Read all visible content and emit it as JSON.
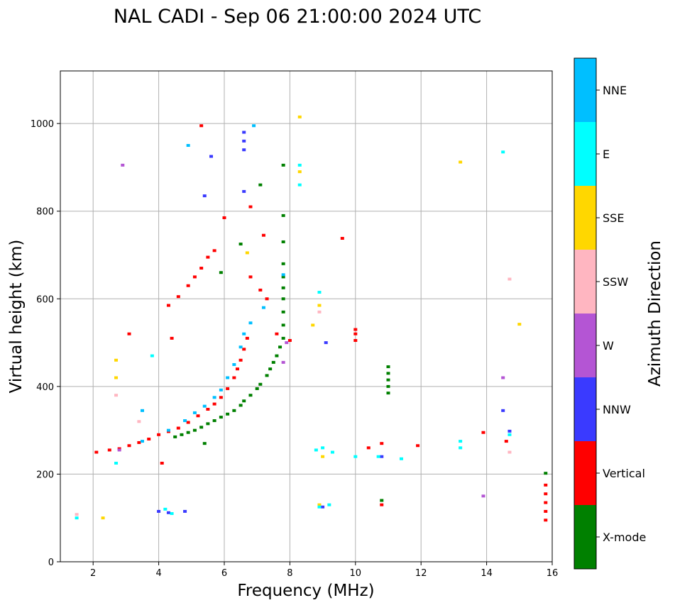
{
  "chart_data": {
    "type": "scatter",
    "title": "NAL CADI - Sep 06 21:00:00 2024 UTC",
    "xlabel": "Frequency (MHz)",
    "ylabel": "Virtual height (km)",
    "xlim": [
      1,
      16
    ],
    "ylim": [
      0,
      1120
    ],
    "xticks": [
      2,
      4,
      6,
      8,
      10,
      12,
      14,
      16
    ],
    "yticks": [
      0,
      200,
      400,
      600,
      800,
      1000
    ],
    "grid": true,
    "colorbar": {
      "label": "Azimuth Direction",
      "categories": [
        {
          "name": "X-mode",
          "color": "#008000"
        },
        {
          "name": "Vertical",
          "color": "#ff0000"
        },
        {
          "name": "NNW",
          "color": "#3a3aff"
        },
        {
          "name": "W",
          "color": "#b455d4"
        },
        {
          "name": "SSW",
          "color": "#ffb6c1"
        },
        {
          "name": "SSE",
          "color": "#ffd700"
        },
        {
          "name": "E",
          "color": "#00ffff"
        },
        {
          "name": "NNE",
          "color": "#00bfff"
        }
      ]
    },
    "series": [
      {
        "name": "X-mode",
        "color": "#008000",
        "points": [
          [
            4.5,
            285
          ],
          [
            4.7,
            290
          ],
          [
            4.9,
            295
          ],
          [
            5.1,
            300
          ],
          [
            5.3,
            307
          ],
          [
            5.5,
            315
          ],
          [
            5.7,
            322
          ],
          [
            5.9,
            330
          ],
          [
            6.1,
            337
          ],
          [
            6.3,
            345
          ],
          [
            6.5,
            357
          ],
          [
            6.6,
            367
          ],
          [
            6.8,
            380
          ],
          [
            7.0,
            395
          ],
          [
            7.1,
            405
          ],
          [
            7.3,
            425
          ],
          [
            7.4,
            440
          ],
          [
            7.5,
            455
          ],
          [
            7.6,
            470
          ],
          [
            7.7,
            490
          ],
          [
            7.8,
            510
          ],
          [
            7.8,
            540
          ],
          [
            7.8,
            570
          ],
          [
            7.8,
            600
          ],
          [
            7.8,
            625
          ],
          [
            7.8,
            650
          ],
          [
            7.8,
            680
          ],
          [
            7.8,
            730
          ],
          [
            7.8,
            790
          ],
          [
            6.5,
            725
          ],
          [
            7.1,
            860
          ],
          [
            7.8,
            905
          ],
          [
            11.0,
            385
          ],
          [
            11.0,
            400
          ],
          [
            11.0,
            415
          ],
          [
            11.0,
            430
          ],
          [
            11.0,
            445
          ],
          [
            5.4,
            270
          ],
          [
            5.9,
            660
          ],
          [
            10.8,
            140
          ],
          [
            15.8,
            202
          ]
        ]
      },
      {
        "name": "Vertical",
        "color": "#ff0000",
        "points": [
          [
            2.1,
            250
          ],
          [
            2.5,
            255
          ],
          [
            2.8,
            258
          ],
          [
            3.1,
            265
          ],
          [
            3.4,
            272
          ],
          [
            3.7,
            280
          ],
          [
            4.0,
            290
          ],
          [
            4.3,
            297
          ],
          [
            4.6,
            305
          ],
          [
            4.9,
            318
          ],
          [
            5.2,
            333
          ],
          [
            5.5,
            348
          ],
          [
            5.7,
            360
          ],
          [
            5.9,
            375
          ],
          [
            6.1,
            395
          ],
          [
            6.3,
            420
          ],
          [
            6.4,
            440
          ],
          [
            6.5,
            460
          ],
          [
            6.6,
            485
          ],
          [
            6.7,
            510
          ],
          [
            4.3,
            585
          ],
          [
            4.6,
            605
          ],
          [
            4.9,
            630
          ],
          [
            5.1,
            650
          ],
          [
            5.3,
            670
          ],
          [
            5.5,
            695
          ],
          [
            5.7,
            710
          ],
          [
            6.8,
            650
          ],
          [
            7.1,
            620
          ],
          [
            7.3,
            600
          ],
          [
            7.2,
            745
          ],
          [
            7.6,
            520
          ],
          [
            8.0,
            505
          ],
          [
            10.0,
            505
          ],
          [
            10.0,
            520
          ],
          [
            10.0,
            530
          ],
          [
            11.9,
            265
          ],
          [
            13.9,
            295
          ],
          [
            14.6,
            275
          ],
          [
            15.8,
            95
          ],
          [
            15.8,
            115
          ],
          [
            15.8,
            135
          ],
          [
            15.8,
            155
          ],
          [
            15.8,
            175
          ],
          [
            10.4,
            260
          ],
          [
            10.8,
            270
          ],
          [
            10.8,
            130
          ],
          [
            9.6,
            738
          ],
          [
            6.0,
            785
          ],
          [
            6.8,
            810
          ],
          [
            5.3,
            995
          ],
          [
            3.1,
            520
          ],
          [
            4.1,
            225
          ],
          [
            4.4,
            510
          ]
        ]
      },
      {
        "name": "NNW",
        "color": "#3a3aff",
        "points": [
          [
            4.0,
            115
          ],
          [
            4.3,
            112
          ],
          [
            4.8,
            115
          ],
          [
            6.6,
            940
          ],
          [
            6.6,
            960
          ],
          [
            6.6,
            980
          ],
          [
            5.6,
            925
          ],
          [
            9.1,
            500
          ],
          [
            14.5,
            345
          ],
          [
            14.7,
            298
          ],
          [
            10.8,
            240
          ],
          [
            9.0,
            125
          ],
          [
            5.4,
            835
          ],
          [
            6.6,
            845
          ]
        ]
      },
      {
        "name": "W",
        "color": "#b455d4",
        "points": [
          [
            2.9,
            905
          ],
          [
            7.8,
            455
          ],
          [
            13.9,
            150
          ],
          [
            14.5,
            420
          ],
          [
            7.9,
            500
          ],
          [
            2.8,
            255
          ]
        ]
      },
      {
        "name": "SSW",
        "color": "#ffb6c1",
        "points": [
          [
            1.5,
            108
          ],
          [
            2.7,
            380
          ],
          [
            8.9,
            570
          ],
          [
            14.7,
            645
          ],
          [
            14.7,
            250
          ],
          [
            3.4,
            320
          ]
        ]
      },
      {
        "name": "SSE",
        "color": "#ffd700",
        "points": [
          [
            2.7,
            420
          ],
          [
            2.7,
            460
          ],
          [
            8.3,
            890
          ],
          [
            8.3,
            1015
          ],
          [
            8.9,
            585
          ],
          [
            8.7,
            540
          ],
          [
            9.0,
            240
          ],
          [
            13.2,
            912
          ],
          [
            15.0,
            542
          ],
          [
            8.9,
            130
          ],
          [
            2.3,
            100
          ],
          [
            6.7,
            705
          ]
        ]
      },
      {
        "name": "E",
        "color": "#00ffff",
        "points": [
          [
            1.5,
            100
          ],
          [
            4.2,
            120
          ],
          [
            4.4,
            110
          ],
          [
            8.3,
            860
          ],
          [
            8.3,
            905
          ],
          [
            8.9,
            615
          ],
          [
            8.8,
            255
          ],
          [
            9.0,
            260
          ],
          [
            9.3,
            250
          ],
          [
            10.0,
            240
          ],
          [
            10.7,
            240
          ],
          [
            11.4,
            235
          ],
          [
            13.2,
            260
          ],
          [
            13.2,
            275
          ],
          [
            14.5,
            935
          ],
          [
            14.7,
            290
          ],
          [
            3.8,
            470
          ],
          [
            8.9,
            125
          ],
          [
            9.2,
            130
          ],
          [
            2.7,
            225
          ]
        ]
      },
      {
        "name": "NNE",
        "color": "#00bfff",
        "points": [
          [
            3.5,
            275
          ],
          [
            4.3,
            300
          ],
          [
            4.8,
            322
          ],
          [
            5.1,
            340
          ],
          [
            5.4,
            355
          ],
          [
            5.7,
            375
          ],
          [
            5.9,
            392
          ],
          [
            6.1,
            420
          ],
          [
            6.3,
            450
          ],
          [
            6.5,
            490
          ],
          [
            6.6,
            520
          ],
          [
            6.8,
            545
          ],
          [
            7.2,
            580
          ],
          [
            7.8,
            655
          ],
          [
            6.9,
            995
          ],
          [
            4.9,
            950
          ],
          [
            3.5,
            345
          ]
        ]
      }
    ]
  }
}
